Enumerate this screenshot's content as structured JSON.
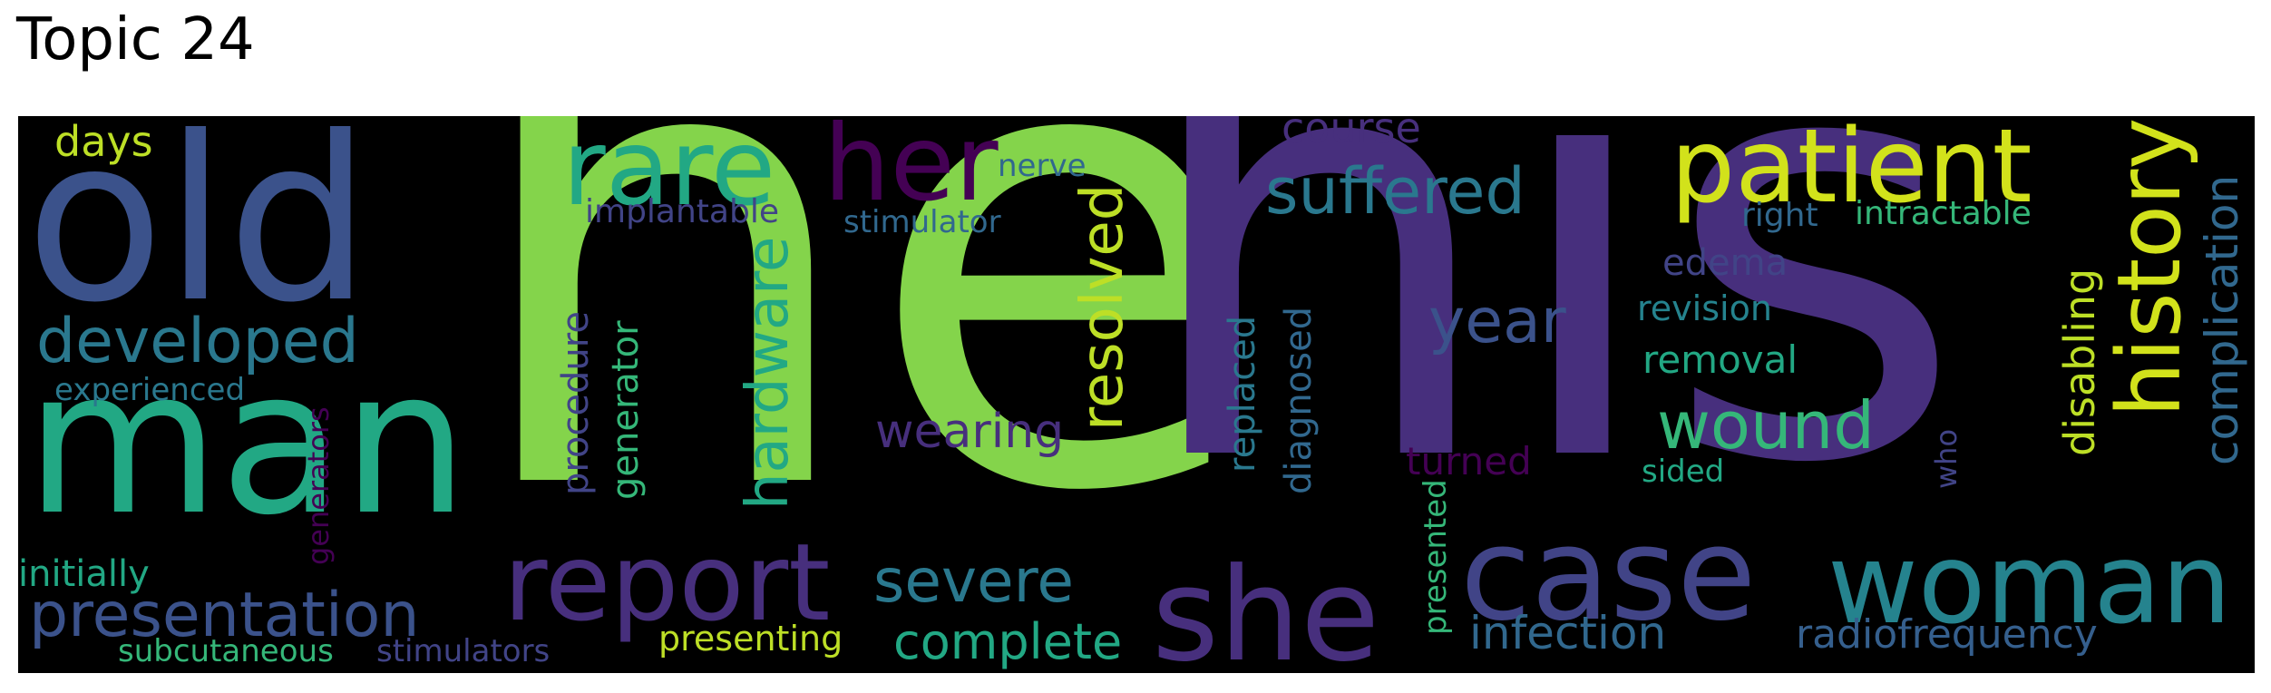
{
  "title": "Topic 24",
  "palette": {
    "lime": "#84d44b",
    "purple": "#472f7d",
    "dark_purple": "#440154",
    "blue": "#3b528b",
    "indigo": "#414487",
    "teal": "#2a788e",
    "teal2": "#25838e",
    "sea_green": "#22a884",
    "green": "#35b779",
    "light_green": "#7ad151",
    "yellow": "#d2e21b",
    "yellow2": "#bddf26",
    "steel": "#31688e",
    "slate": "#355f8d"
  },
  "words": [
    {
      "id": "he",
      "text": "he",
      "color": "lime"
    },
    {
      "id": "his",
      "text": "his",
      "color": "purple"
    },
    {
      "id": "old",
      "text": "old",
      "color": "blue"
    },
    {
      "id": "man",
      "text": "man",
      "color": "sea_green"
    },
    {
      "id": "rare",
      "text": "rare",
      "color": "sea_green"
    },
    {
      "id": "her",
      "text": "her",
      "color": "dark_purple"
    },
    {
      "id": "patient",
      "text": "patient",
      "color": "yellow"
    },
    {
      "id": "history",
      "text": "history",
      "color": "yellow"
    },
    {
      "id": "case",
      "text": "case",
      "color": "indigo"
    },
    {
      "id": "woman",
      "text": "woman",
      "color": "teal2"
    },
    {
      "id": "she",
      "text": "she",
      "color": "purple"
    },
    {
      "id": "report",
      "text": "report",
      "color": "purple"
    },
    {
      "id": "developed",
      "text": "developed",
      "color": "teal"
    },
    {
      "id": "presentation",
      "text": "presentation",
      "color": "blue"
    },
    {
      "id": "suffered",
      "text": "suffered",
      "color": "teal"
    },
    {
      "id": "hardware",
      "text": "hardware",
      "color": "sea_green"
    },
    {
      "id": "resolved",
      "text": "resolved",
      "color": "yellow2"
    },
    {
      "id": "severe",
      "text": "severe",
      "color": "teal"
    },
    {
      "id": "complete",
      "text": "complete",
      "color": "sea_green"
    },
    {
      "id": "wearing",
      "text": "wearing",
      "color": "purple"
    },
    {
      "id": "year",
      "text": "year",
      "color": "blue"
    },
    {
      "id": "wound",
      "text": "wound",
      "color": "green"
    },
    {
      "id": "complication",
      "text": "complication",
      "color": "steel"
    },
    {
      "id": "disabling",
      "text": "disabling",
      "color": "yellow2"
    },
    {
      "id": "days",
      "text": "days",
      "color": "yellow2"
    },
    {
      "id": "nerve",
      "text": "nerve",
      "color": "steel"
    },
    {
      "id": "course",
      "text": "course",
      "color": "purple"
    },
    {
      "id": "implantable",
      "text": "implantable",
      "color": "indigo"
    },
    {
      "id": "stimulator",
      "text": "stimulator",
      "color": "steel"
    },
    {
      "id": "right",
      "text": "right",
      "color": "steel"
    },
    {
      "id": "intractable",
      "text": "intractable",
      "color": "green"
    },
    {
      "id": "edema",
      "text": "edema",
      "color": "indigo"
    },
    {
      "id": "revision",
      "text": "revision",
      "color": "teal2"
    },
    {
      "id": "removal",
      "text": "removal",
      "color": "sea_green"
    },
    {
      "id": "procedure",
      "text": "procedure",
      "color": "indigo"
    },
    {
      "id": "generator",
      "text": "generator",
      "color": "green"
    },
    {
      "id": "replaced",
      "text": "replaced",
      "color": "teal"
    },
    {
      "id": "diagnosed",
      "text": "diagnosed",
      "color": "steel"
    },
    {
      "id": "turned",
      "text": "turned",
      "color": "dark_purple"
    },
    {
      "id": "sided",
      "text": "sided",
      "color": "sea_green"
    },
    {
      "id": "who",
      "text": "who",
      "color": "indigo"
    },
    {
      "id": "experienced",
      "text": "experienced",
      "color": "teal"
    },
    {
      "id": "generators",
      "text": "generators",
      "color": "dark_purple"
    },
    {
      "id": "initially",
      "text": "initially",
      "color": "sea_green"
    },
    {
      "id": "subcutaneous",
      "text": "subcutaneous",
      "color": "green"
    },
    {
      "id": "stimulators",
      "text": "stimulators",
      "color": "indigo"
    },
    {
      "id": "presenting",
      "text": "presenting",
      "color": "yellow2"
    },
    {
      "id": "infection",
      "text": "infection",
      "color": "steel"
    },
    {
      "id": "radiofrequency",
      "text": "radiofrequency",
      "color": "slate"
    },
    {
      "id": "presented",
      "text": "presented",
      "color": "green"
    }
  ]
}
